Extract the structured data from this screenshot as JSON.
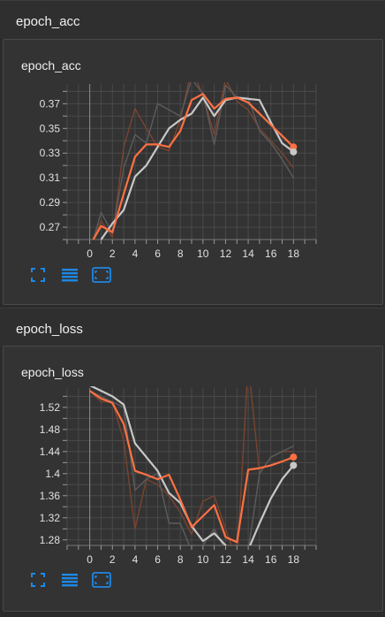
{
  "sections": [
    {
      "header": "epoch_acc",
      "card_title": "epoch_acc"
    },
    {
      "header": "epoch_loss",
      "card_title": "epoch_loss"
    }
  ],
  "colors": {
    "smoothed": "#ff7043",
    "comparison": "#c8c8c8",
    "raw_orange": "#7a4430",
    "raw_gray": "#5c5c5c",
    "icon": "#1e88e5"
  },
  "toolbar": {
    "icons": [
      "fullscreen-icon",
      "list-icon",
      "fit-domain-icon"
    ]
  },
  "chart_data": [
    {
      "type": "line",
      "title": "epoch_acc",
      "xlabel": "",
      "ylabel": "",
      "xlim": [
        -2,
        20
      ],
      "ylim": [
        0.26,
        0.386
      ],
      "xticks": [
        0,
        2,
        4,
        6,
        8,
        10,
        12,
        14,
        16,
        18
      ],
      "yticks": [
        0.27,
        0.29,
        0.31,
        0.33,
        0.35,
        0.37
      ],
      "ytick_labels": [
        "0.27",
        "0.29",
        "0.31",
        "0.33",
        "0.35",
        "0.37"
      ],
      "series": [
        {
          "style": "raw_orange",
          "x": [
            0,
            1,
            2,
            3,
            4,
            5,
            6,
            7,
            8,
            9,
            10,
            11,
            12,
            13,
            14,
            15,
            16,
            17,
            18
          ],
          "y": [
            0.255,
            0.275,
            0.262,
            0.335,
            0.366,
            0.35,
            0.335,
            0.332,
            0.357,
            0.398,
            0.377,
            0.345,
            0.39,
            0.372,
            0.365,
            0.35,
            0.34,
            0.33,
            0.318
          ]
        },
        {
          "style": "raw_gray",
          "x": [
            0,
            1,
            2,
            3,
            4,
            5,
            6,
            7,
            8,
            9,
            10,
            11,
            12,
            13,
            14,
            15,
            16,
            17,
            18
          ],
          "y": [
            0.25,
            0.282,
            0.265,
            0.318,
            0.345,
            0.338,
            0.37,
            0.365,
            0.36,
            0.39,
            0.378,
            0.337,
            0.385,
            0.375,
            0.375,
            0.348,
            0.338,
            0.325,
            0.31
          ]
        },
        {
          "style": "comparison",
          "x": [
            1,
            2,
            3,
            4,
            5,
            6,
            7,
            8,
            9,
            10,
            11,
            12,
            13,
            14,
            15,
            16,
            17,
            18
          ],
          "y": [
            0.26,
            0.273,
            0.284,
            0.311,
            0.32,
            0.335,
            0.35,
            0.357,
            0.362,
            0.375,
            0.36,
            0.373,
            0.375,
            0.374,
            0.373,
            0.355,
            0.338,
            0.331
          ]
        },
        {
          "style": "smoothed",
          "x": [
            0,
            1,
            2,
            3,
            4,
            5,
            6,
            7,
            8,
            9,
            10,
            11,
            12,
            13,
            14,
            15,
            16,
            17,
            18
          ],
          "y": [
            0.255,
            0.271,
            0.266,
            0.297,
            0.327,
            0.337,
            0.337,
            0.335,
            0.348,
            0.373,
            0.378,
            0.366,
            0.374,
            0.375,
            0.371,
            0.362,
            0.353,
            0.344,
            0.335
          ]
        }
      ],
      "end_markers": [
        {
          "style": "smoothed",
          "x": 18,
          "y": 0.335
        },
        {
          "style": "comparison",
          "x": 18,
          "y": 0.331
        }
      ]
    },
    {
      "type": "line",
      "title": "epoch_loss",
      "xlabel": "",
      "ylabel": "",
      "xlim": [
        -2,
        20
      ],
      "ylim": [
        1.27,
        1.555
      ],
      "xticks": [
        0,
        2,
        4,
        6,
        8,
        10,
        12,
        14,
        16,
        18
      ],
      "yticks": [
        1.28,
        1.32,
        1.36,
        1.4,
        1.44,
        1.48,
        1.52
      ],
      "ytick_labels": [
        "1.28",
        "1.32",
        "1.36",
        "1.4",
        "1.44",
        "1.48",
        "1.52"
      ],
      "series": [
        {
          "style": "raw_orange",
          "x": [
            0,
            1,
            2,
            3,
            4,
            5,
            6,
            7,
            8,
            9,
            10,
            11,
            12,
            13,
            14,
            15,
            16,
            17,
            18
          ],
          "y": [
            1.55,
            1.53,
            1.53,
            1.46,
            1.3,
            1.39,
            1.38,
            1.36,
            1.33,
            1.29,
            1.35,
            1.36,
            1.3,
            1.24,
            1.6,
            1.4,
            1.43,
            1.44,
            1.44
          ]
        },
        {
          "style": "raw_gray",
          "x": [
            0,
            1,
            2,
            3,
            4,
            5,
            6,
            7,
            8,
            9,
            10,
            11,
            12,
            13,
            14,
            15,
            16,
            17,
            18
          ],
          "y": [
            1.55,
            1.54,
            1.53,
            1.52,
            1.37,
            1.39,
            1.4,
            1.31,
            1.31,
            1.26,
            1.27,
            1.3,
            1.26,
            1.25,
            1.26,
            1.4,
            1.43,
            1.44,
            1.45
          ]
        },
        {
          "style": "comparison",
          "x": [
            0,
            1,
            2,
            3,
            4,
            5,
            6,
            7,
            8,
            9,
            10,
            11,
            12,
            13,
            14,
            15,
            16,
            17,
            18
          ],
          "y": [
            1.56,
            1.55,
            1.54,
            1.525,
            1.455,
            1.43,
            1.405,
            1.365,
            1.347,
            1.305,
            1.278,
            1.292,
            1.27,
            1.25,
            1.262,
            1.31,
            1.355,
            1.39,
            1.415
          ]
        },
        {
          "style": "smoothed",
          "x": [
            0,
            1,
            2,
            3,
            4,
            5,
            6,
            7,
            8,
            9,
            10,
            11,
            12,
            13,
            14,
            15,
            16,
            17,
            18
          ],
          "y": [
            1.55,
            1.536,
            1.528,
            1.49,
            1.405,
            1.398,
            1.39,
            1.398,
            1.353,
            1.303,
            1.323,
            1.343,
            1.285,
            1.276,
            1.407,
            1.41,
            1.415,
            1.422,
            1.43
          ]
        }
      ],
      "end_markers": [
        {
          "style": "smoothed",
          "x": 18,
          "y": 1.43
        },
        {
          "style": "comparison",
          "x": 18,
          "y": 1.415
        }
      ]
    }
  ]
}
